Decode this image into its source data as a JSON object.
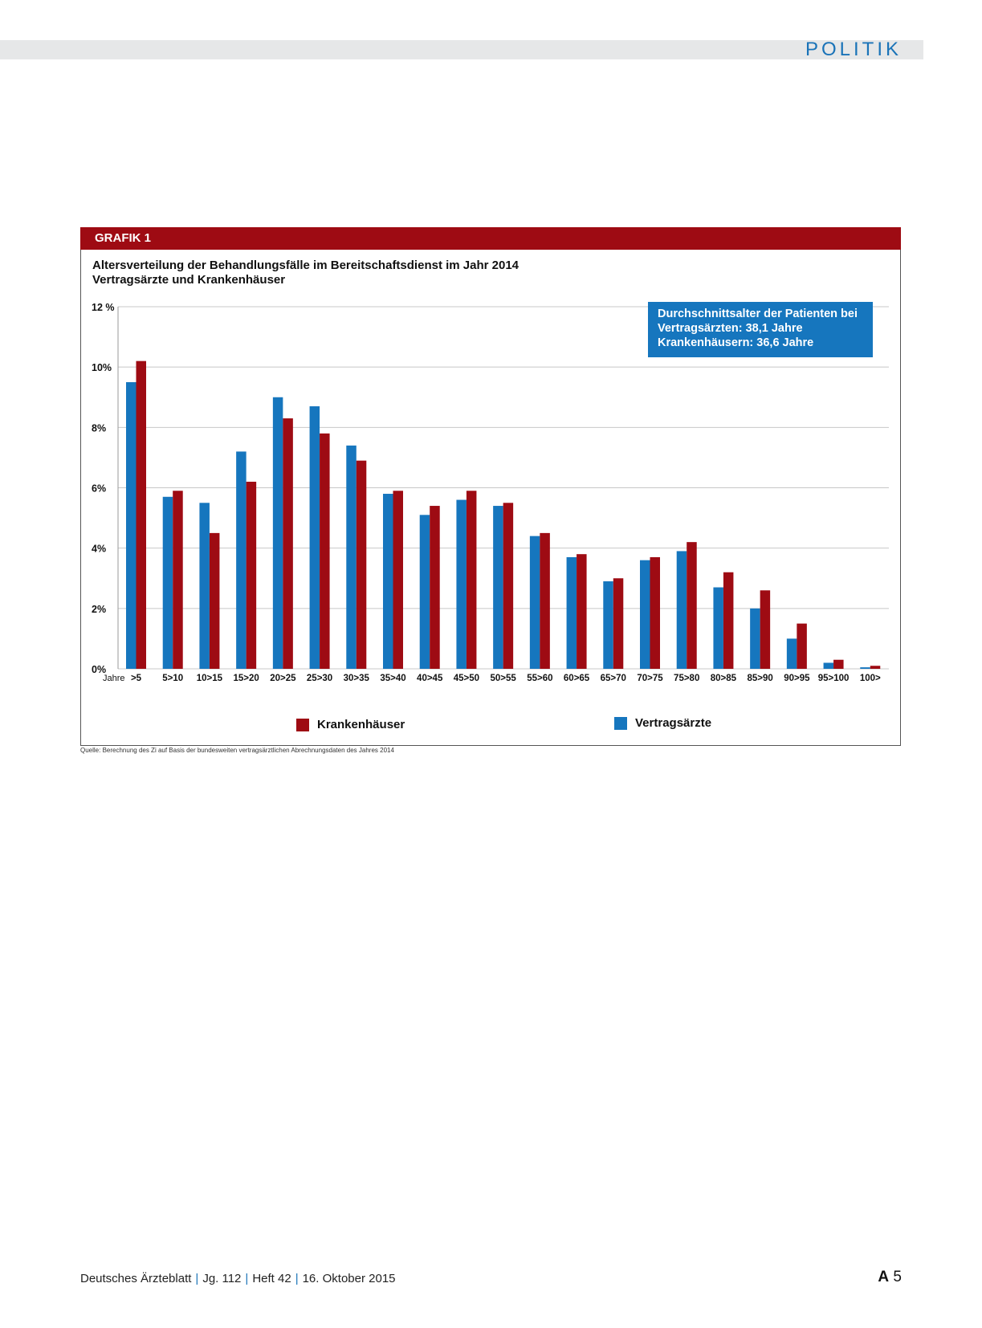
{
  "header": {
    "section": "POLITIK"
  },
  "figure": {
    "label": "GRAFIK 1",
    "title_line1": "Altersverteilung der Behandlungsfälle im Bereitschaftsdienst im Jahr 2014",
    "title_line2": "Vertragsärzte und Krankenhäuser",
    "info_line1": "Durchschnittsalter der Patienten bei",
    "info_line2": "Vertragsärzten: 38,1 Jahre",
    "info_line3": "Krankenhäusern: 36,6 Jahre",
    "source": "Quelle: Berechnung des Zi auf Basis der bundesweiten vertragsärztlichen Abrechnungsdaten des Jahres 2014"
  },
  "legend": {
    "krankenhaeuser": "Krankenhäuser",
    "vertragsaerzte": "Vertragsärzte"
  },
  "footer": {
    "journal": "Deutsches Ärzteblatt",
    "volume": "Jg. 112",
    "issue": "Heft 42",
    "date": "16. Oktober 2015",
    "page_prefix": "A",
    "page_number": "5"
  },
  "colors": {
    "vertragsaerzte": "#1676be",
    "krankenhaeuser": "#9e0b13",
    "grid": "#c8c8c8"
  },
  "chart_data": {
    "type": "bar",
    "xlabel": "Jahre",
    "ylabel": "",
    "ylim": [
      0,
      12
    ],
    "yticks": [
      {
        "value": 12,
        "label": "12 %"
      },
      {
        "value": 10,
        "label": "10%"
      },
      {
        "value": 8,
        "label": "8%"
      },
      {
        "value": 6,
        "label": "6%"
      },
      {
        "value": 4,
        "label": "4%"
      },
      {
        "value": 2,
        "label": "2%"
      },
      {
        "value": 0,
        "label": "0%"
      }
    ],
    "grid": true,
    "legend_position": "bottom",
    "categories": [
      ">5",
      "5>10",
      "10>15",
      "15>20",
      "20>25",
      "25>30",
      "30>35",
      "35>40",
      "40>45",
      "45>50",
      "50>55",
      "55>60",
      "60>65",
      "65>70",
      "70>75",
      "75>80",
      "80>85",
      "85>90",
      "90>95",
      "95>100",
      "100>"
    ],
    "series": [
      {
        "name": "Vertragsärzte",
        "values": [
          9.5,
          5.7,
          5.5,
          7.2,
          9.0,
          8.7,
          7.4,
          5.8,
          5.1,
          5.6,
          5.4,
          4.4,
          3.7,
          2.9,
          3.6,
          3.9,
          2.7,
          2.0,
          1.0,
          0.2,
          0.05
        ]
      },
      {
        "name": "Krankenhäuser",
        "values": [
          10.2,
          5.9,
          4.5,
          6.2,
          8.3,
          7.8,
          6.9,
          5.9,
          5.4,
          5.9,
          5.5,
          4.5,
          3.8,
          3.0,
          3.7,
          4.2,
          3.2,
          2.6,
          1.5,
          0.3,
          0.1
        ]
      }
    ]
  }
}
